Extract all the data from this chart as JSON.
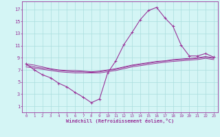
{
  "x_main": [
    0,
    1,
    2,
    3,
    4,
    5,
    6,
    7,
    8,
    9,
    10,
    11,
    12,
    13,
    14,
    15,
    16,
    17,
    18,
    19,
    20,
    21,
    22,
    23
  ],
  "y_main": [
    8.0,
    7.0,
    6.2,
    5.7,
    4.8,
    4.2,
    3.3,
    2.5,
    1.6,
    2.2,
    6.5,
    8.5,
    11.2,
    13.2,
    15.3,
    16.8,
    17.3,
    15.6,
    14.2,
    11.1,
    9.3,
    9.3,
    9.7,
    9.1
  ],
  "y_flatA": [
    8.0,
    7.8,
    7.5,
    7.2,
    7.0,
    6.9,
    6.9,
    6.8,
    6.7,
    6.8,
    7.0,
    7.2,
    7.5,
    7.8,
    8.0,
    8.2,
    8.4,
    8.5,
    8.7,
    8.8,
    8.9,
    9.0,
    9.2,
    9.0
  ],
  "y_flatB": [
    7.8,
    7.5,
    7.3,
    7.1,
    6.9,
    6.8,
    6.7,
    6.7,
    6.6,
    6.7,
    6.9,
    7.1,
    7.4,
    7.7,
    7.9,
    8.1,
    8.3,
    8.45,
    8.6,
    8.7,
    8.8,
    8.9,
    9.1,
    8.9
  ],
  "y_flatC": [
    7.5,
    7.3,
    7.1,
    6.9,
    6.7,
    6.6,
    6.5,
    6.5,
    6.5,
    6.5,
    6.7,
    6.9,
    7.2,
    7.5,
    7.7,
    7.9,
    8.1,
    8.25,
    8.4,
    8.5,
    8.6,
    8.7,
    8.9,
    8.7
  ],
  "line_color": "#993399",
  "bg_color": "#d4f5f5",
  "grid_color": "#aadddd",
  "xlabel": "Windchill (Refroidissement éolien,°C)",
  "ylim": [
    0,
    18
  ],
  "xlim": [
    -0.5,
    23.5
  ],
  "yticks": [
    1,
    3,
    5,
    7,
    9,
    11,
    13,
    15,
    17
  ],
  "xticks": [
    0,
    1,
    2,
    3,
    4,
    5,
    6,
    7,
    8,
    9,
    10,
    11,
    12,
    13,
    14,
    15,
    16,
    17,
    18,
    19,
    20,
    21,
    22,
    23
  ]
}
